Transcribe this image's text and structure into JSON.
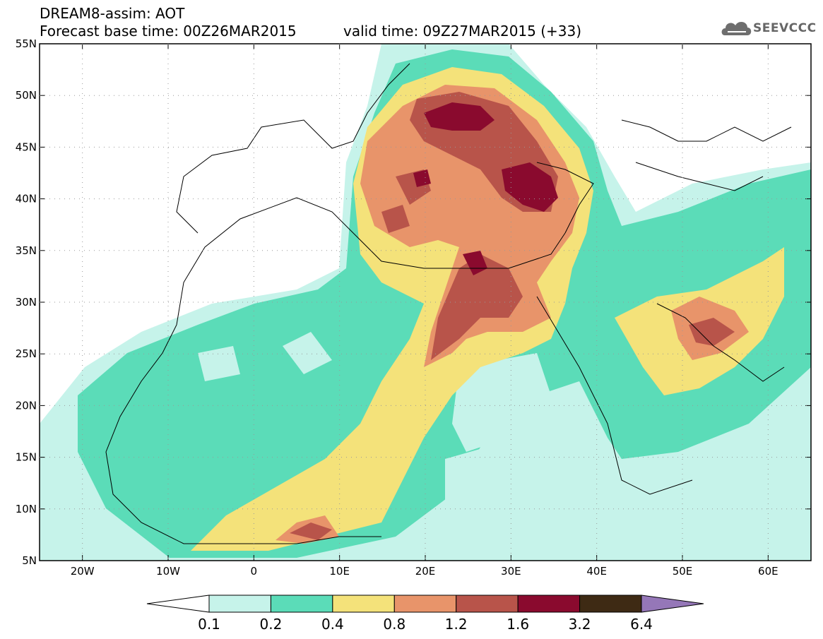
{
  "header": {
    "title": "DREAM8-assim: AOT",
    "base_time": "Forecast base time: 00Z26MAR2015",
    "valid_time": "valid time: 09Z27MAR2015 (+33)",
    "logo_text": "SEEVCCC"
  },
  "map": {
    "lat_labels": [
      "55N",
      "50N",
      "45N",
      "40N",
      "35N",
      "30N",
      "25N",
      "20N",
      "15N",
      "10N",
      "5N"
    ],
    "lon_labels": [
      "20W",
      "10W",
      "0",
      "10E",
      "20E",
      "30E",
      "40E",
      "50E",
      "60E"
    ],
    "lon_range": [
      -25,
      65
    ],
    "lat_range": [
      5,
      55
    ]
  },
  "colorbar": {
    "labels": [
      "0.1",
      "0.2",
      "0.4",
      "0.8",
      "1.2",
      "1.6",
      "3.2",
      "6.4"
    ],
    "colors": [
      "#ffffff",
      "#c6f3ea",
      "#5bdcb8",
      "#f4e27a",
      "#e8946a",
      "#b8544a",
      "#8a0a2e",
      "#3e2a14",
      "#9577b8"
    ]
  },
  "colors": {
    "c01": "#c6f3ea",
    "c02": "#5bdcb8",
    "c04": "#f4e27a",
    "c08": "#e8946a",
    "c12": "#b8544a",
    "c16": "#8a0a2e"
  }
}
